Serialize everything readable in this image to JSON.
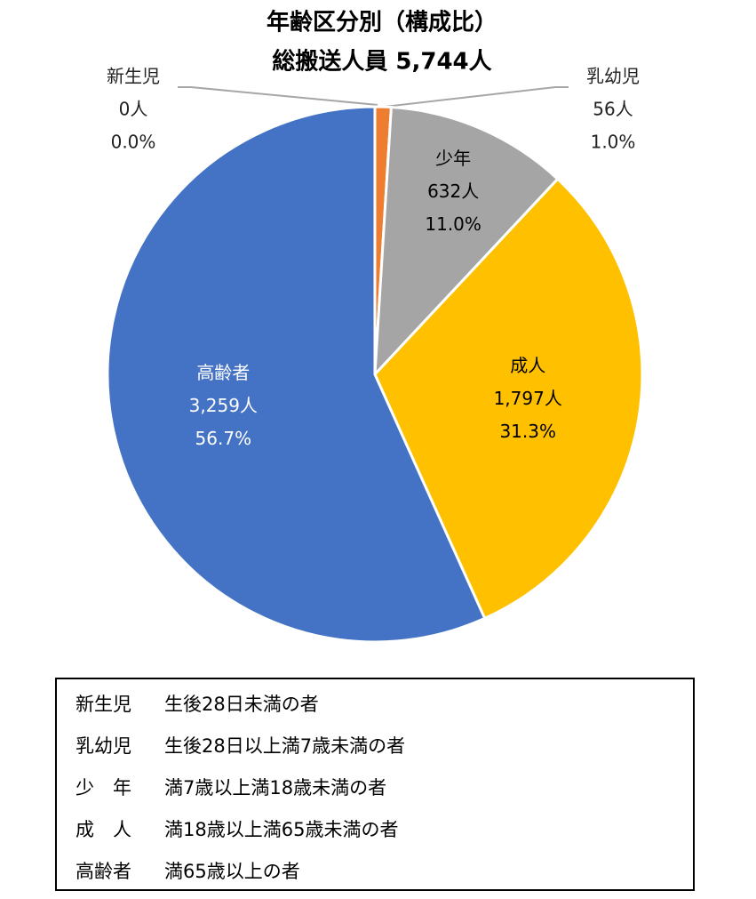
{
  "chart_data": {
    "type": "pie",
    "title": "年齢区分別（構成比）",
    "subtitle": "総搬送人員 5,744人",
    "categories": [
      "新生児",
      "乳幼児",
      "少年",
      "成人",
      "高齢者"
    ],
    "values": [
      0,
      56,
      632,
      1797,
      3259
    ],
    "value_labels": [
      "0人",
      "56人",
      "632人",
      "1,797人",
      "3,259人"
    ],
    "percents": [
      0.0,
      1.0,
      11.0,
      31.3,
      56.7
    ],
    "percent_labels": [
      "0.0%",
      "1.0%",
      "11.0%",
      "31.3%",
      "56.7%"
    ],
    "colors": [
      "#4472c4",
      "#ed7d31",
      "#a5a5a5",
      "#ffc000",
      "#4472c4"
    ]
  },
  "definitions": [
    {
      "term": "新生児",
      "description": "生後28日未満の者"
    },
    {
      "term": "乳幼児",
      "description": "生後28日以上満7歳未満の者"
    },
    {
      "term": "少　年",
      "description": "満7歳以上満18歳未満の者"
    },
    {
      "term": "成　人",
      "description": "満18歳以上満65歳未満の者"
    },
    {
      "term": "高齢者",
      "description": "満65歳以上の者"
    }
  ]
}
